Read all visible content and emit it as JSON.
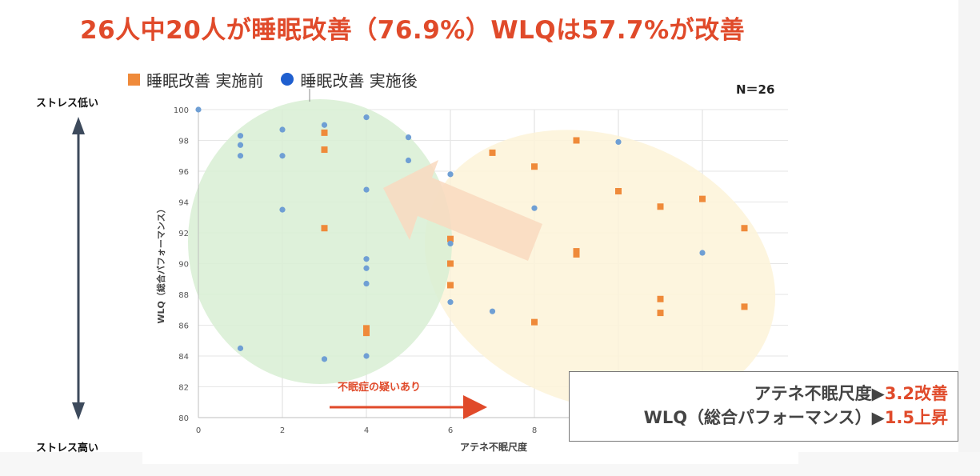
{
  "title": "26人中20人が睡眠改善（76.9%）WLQは57.7%が改善",
  "legend": {
    "before": "睡眠改善 実施前",
    "after": "睡眠改善 実施後"
  },
  "n_label": "N＝26",
  "stress_high_label": "ストレス低い",
  "stress_low_label": "ストレス高い",
  "insomnia_label": "不眠症の疑いあり",
  "summary": {
    "line1_prefix": "アテネ不眠尺度▶",
    "line1_value": "3.2改善",
    "line2_prefix": "WLQ（総合パフォーマンス）▶",
    "line2_value": "1.5上昇"
  },
  "colors": {
    "title": "#e04a2a",
    "before_marker": "#ef8a3a",
    "after_marker": "#6f9fd4",
    "legend_after_dot": "#1f5fcf",
    "green_region": "#d8efd4",
    "yellow_region": "#fdf3d8",
    "arrow_fill": "#f9d9bf",
    "stress_arrow": "#3d4a5c"
  },
  "chart_data": {
    "type": "scatter",
    "xlabel": "アテネ不眠尺度",
    "ylabel": "WLQ（総合パフォーマンス）",
    "xlim": [
      0,
      14
    ],
    "ylim": [
      80,
      100
    ],
    "x_ticks": [
      0,
      2,
      4,
      6,
      8
    ],
    "y_ticks": [
      80,
      82,
      84,
      86,
      88,
      90,
      92,
      94,
      96,
      98,
      100
    ],
    "grid": true,
    "legend_position": "top-left",
    "series": [
      {
        "name": "睡眠改善 実施前",
        "marker": "square",
        "points": [
          [
            3,
            98.5
          ],
          [
            3,
            97.4
          ],
          [
            3,
            92.3
          ],
          [
            4,
            85.8
          ],
          [
            4,
            85.5
          ],
          [
            6,
            91.6
          ],
          [
            6,
            90
          ],
          [
            6,
            88.6
          ],
          [
            7,
            97.2
          ],
          [
            8,
            96.3
          ],
          [
            8,
            86.2
          ],
          [
            9,
            98
          ],
          [
            9,
            90.8
          ],
          [
            9,
            90.6
          ],
          [
            10,
            94.7
          ],
          [
            11,
            93.7
          ],
          [
            11,
            87.7
          ],
          [
            11,
            86.8
          ],
          [
            12,
            94.2
          ],
          [
            13,
            92.3
          ],
          [
            13,
            87.2
          ]
        ]
      },
      {
        "name": "睡眠改善 実施後",
        "marker": "circle",
        "points": [
          [
            0,
            100
          ],
          [
            1,
            98.3
          ],
          [
            1,
            97.7
          ],
          [
            1,
            97
          ],
          [
            1,
            84.5
          ],
          [
            2,
            98.7
          ],
          [
            2,
            97
          ],
          [
            2,
            93.5
          ],
          [
            3,
            99
          ],
          [
            3,
            83.8
          ],
          [
            4,
            99.5
          ],
          [
            4,
            94.8
          ],
          [
            4,
            90.3
          ],
          [
            4,
            89.7
          ],
          [
            4,
            88.7
          ],
          [
            4,
            84
          ],
          [
            5,
            98.2
          ],
          [
            5,
            96.7
          ],
          [
            6,
            95.8
          ],
          [
            6,
            91.3
          ],
          [
            6,
            87.5
          ],
          [
            7,
            86.9
          ],
          [
            8,
            93.6
          ],
          [
            10,
            97.9
          ],
          [
            12,
            90.7
          ]
        ]
      }
    ]
  }
}
